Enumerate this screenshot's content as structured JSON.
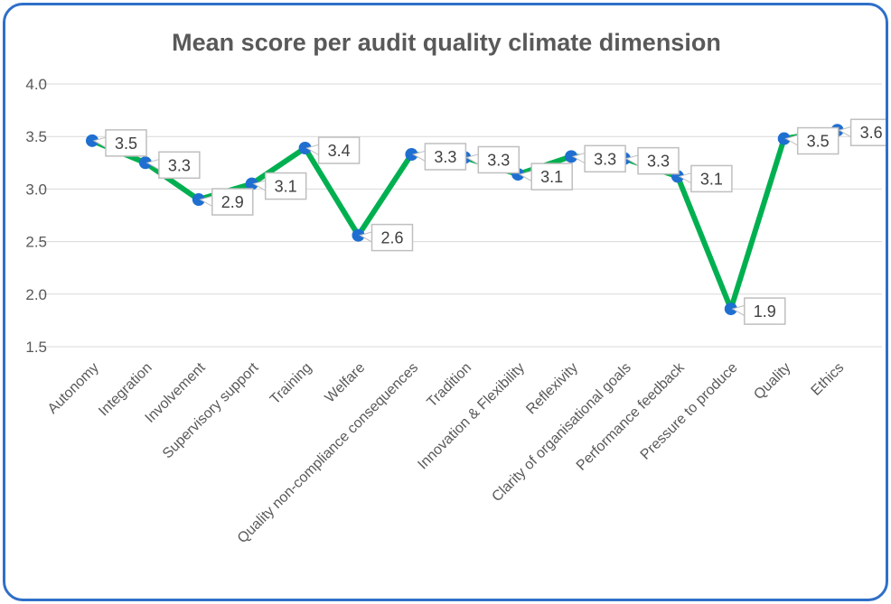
{
  "chart_data": {
    "type": "line",
    "title": "Mean score per audit quality climate dimension",
    "categories": [
      "Autonomy",
      "Integration",
      "Involvement",
      "Supervisory support",
      "Training",
      "Welfare",
      "Quality non-compliance consequences",
      "Tradition",
      "Innovation & Flexibility",
      "Reflexivity",
      "Clarity of organisational goals",
      "Performance feedback",
      "Pressure to produce",
      "Quality",
      "Ethics"
    ],
    "values": [
      3.46,
      3.25,
      2.9,
      3.05,
      3.39,
      2.56,
      3.33,
      3.3,
      3.14,
      3.31,
      3.29,
      3.12,
      1.86,
      3.48,
      3.56
    ],
    "data_labels": [
      "3.5",
      "3.3",
      "2.9",
      "3.1",
      "3.4",
      "2.6",
      "3.3",
      "3.3",
      "3.1",
      "3.3",
      "3.3",
      "3.1",
      "1.9",
      "3.5",
      "3.6"
    ],
    "y_ticks": [
      "4.0",
      "3.5",
      "3.0",
      "2.5",
      "2.0",
      "1.5"
    ],
    "ylim": [
      1.5,
      4.0
    ],
    "grid": true,
    "legend": "none",
    "line_color": "#00b050",
    "marker_color": "#1f6fd1",
    "label_border_color": "#bfbfbf"
  }
}
